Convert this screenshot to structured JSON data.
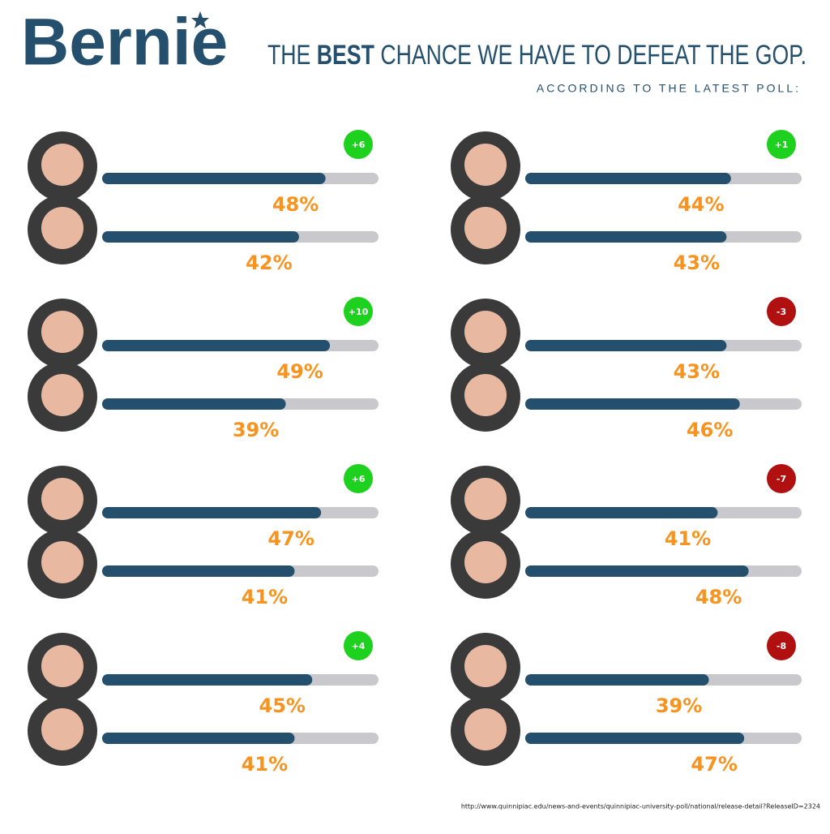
{
  "title": "Bernie",
  "headline": [
    "THE",
    "BEST",
    "CHANCE WE HAVE TO DEFEAT THE GOP."
  ],
  "tagline": "ACCORDING TO THE LATEST POLL:",
  "source": "http://www.quinnipiac.edu/news-and-events/quinnipiac-university-poll/national/release-detail?ReleaseID=2324",
  "chart_data": [
    {
      "type": "bar",
      "values": [
        48,
        42
      ],
      "value_labels": [
        "48%",
        "42%"
      ],
      "xlim": [
        0,
        60
      ],
      "color": "#24506e",
      "track_color": "#c9c9cd",
      "label_color": "#f7931e",
      "badge": "+6",
      "badge_color": "#1fd11f"
    },
    {
      "type": "bar",
      "values": [
        49,
        39
      ],
      "value_labels": [
        "49%",
        "39%"
      ],
      "xlim": [
        0,
        60
      ],
      "color": "#24506e",
      "track_color": "#c9c9cd",
      "label_color": "#f7931e",
      "badge": "+10",
      "badge_color": "#1fd11f"
    },
    {
      "type": "bar",
      "values": [
        47,
        41
      ],
      "value_labels": [
        "47%",
        "41%"
      ],
      "xlim": [
        0,
        60
      ],
      "color": "#24506e",
      "track_color": "#c9c9cd",
      "label_color": "#f7931e",
      "badge": "+6",
      "badge_color": "#1fd11f"
    },
    {
      "type": "bar",
      "values": [
        45,
        41
      ],
      "value_labels": [
        "45%",
        "41%"
      ],
      "xlim": [
        0,
        60
      ],
      "color": "#24506e",
      "track_color": "#c9c9cd",
      "label_color": "#f7931e",
      "badge": "+4",
      "badge_color": "#1fd11f"
    },
    {
      "type": "bar",
      "values": [
        44,
        43
      ],
      "value_labels": [
        "44%",
        "43%"
      ],
      "xlim": [
        0,
        60
      ],
      "color": "#24506e",
      "track_color": "#c9c9cd",
      "label_color": "#f7931e",
      "badge": "+1",
      "badge_color": "#1fd11f"
    },
    {
      "type": "bar",
      "values": [
        43,
        46
      ],
      "value_labels": [
        "43%",
        "46%"
      ],
      "xlim": [
        0,
        60
      ],
      "color": "#24506e",
      "track_color": "#c9c9cd",
      "label_color": "#f7931e",
      "badge": "-3",
      "badge_color": "#b01010"
    },
    {
      "type": "bar",
      "values": [
        41,
        48
      ],
      "value_labels": [
        "41%",
        "48%"
      ],
      "xlim": [
        0,
        60
      ],
      "color": "#24506e",
      "track_color": "#c9c9cd",
      "label_color": "#f7931e",
      "badge": "-7",
      "badge_color": "#b01010"
    },
    {
      "type": "bar",
      "values": [
        39,
        47
      ],
      "value_labels": [
        "39%",
        "47%"
      ],
      "xlim": [
        0,
        60
      ],
      "color": "#24506e",
      "track_color": "#c9c9cd",
      "label_color": "#f7931e",
      "badge": "-8",
      "badge_color": "#b01010"
    }
  ]
}
